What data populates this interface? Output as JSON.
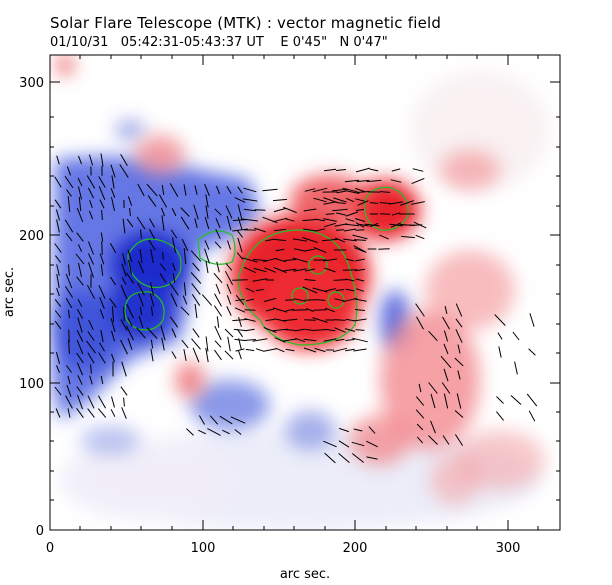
{
  "header": {
    "title": "Solar Flare Telescope (MTK) : vector magnetic field",
    "subtitle": "01/10/31   05:42:31-05:43:37 UT    E 0'45\"   N 0'47\""
  },
  "axes": {
    "xlabel": "arc sec.",
    "ylabel": "arc sec.",
    "xticks": [
      "0",
      "100",
      "200",
      "300"
    ],
    "yticks": [
      "0",
      "100",
      "200",
      "300"
    ]
  },
  "colors": {
    "positive_field": "#e8232b",
    "negative_field": "#1e2fcf",
    "contour": "#22c022",
    "vector": "#000000",
    "frame": "#000000"
  }
}
